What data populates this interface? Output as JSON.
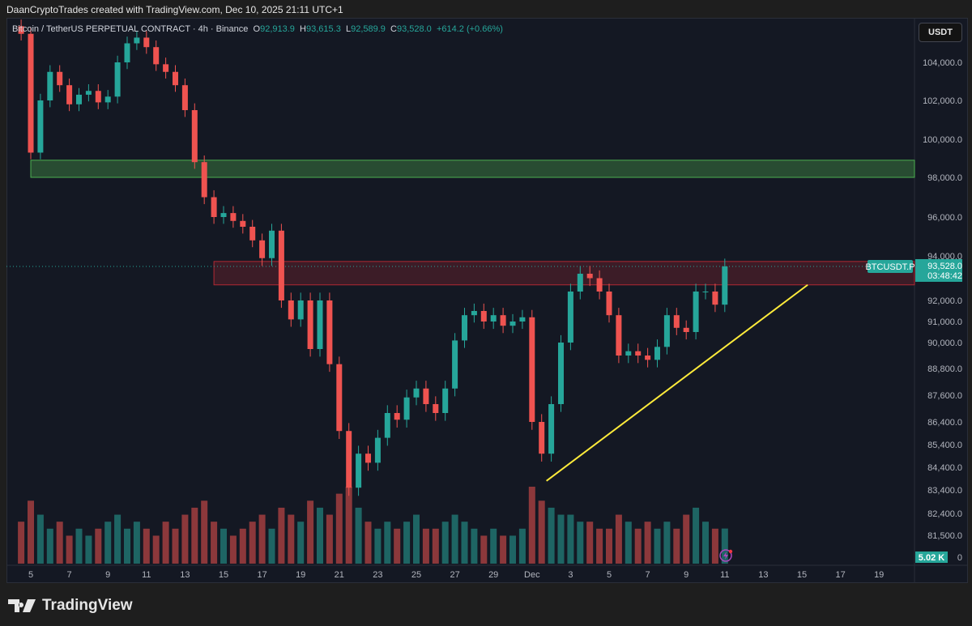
{
  "credit": "DaanCryptoTrades created with TradingView.com, Dec 10, 2025 21:11 UTC+1",
  "legend": {
    "symbol": "Bitcoin / TetherUS PERPETUAL CONTRACT · 4h · Binance",
    "o_label": "O",
    "o": "92,913.9",
    "h_label": "H",
    "h": "93,615.3",
    "l_label": "L",
    "l": "92,589.9",
    "c_label": "C",
    "c": "93,528.0",
    "change": "+614.2 (+0.66%)"
  },
  "currency_button": "USDT",
  "price_badge": {
    "symbol": "BTCUSDT.P",
    "price": "93,528.0",
    "countdown": "03:48:42"
  },
  "volume_badge": "5.02 K",
  "brand": "TradingView",
  "colors": {
    "up": "#26a69a",
    "down": "#ef5350",
    "support_zone": "#4caf50",
    "resistance_zone": "#b22833",
    "trendline": "#ffeb3b",
    "background": "#141823"
  },
  "chart_data": {
    "type": "candlestick",
    "interval": "4h",
    "y_ticks": [
      "104,000.0",
      "102,000.0",
      "100,000.0",
      "98,000.0",
      "96,000.0",
      "94,000.0",
      "92,000.0",
      "91,000.0",
      "90,000.0",
      "88,800.0",
      "87,600.0",
      "86,400.0",
      "85,400.0",
      "84,400.0",
      "83,400.0",
      "82,400.0",
      "81,500.0",
      "0"
    ],
    "y_tick_values": [
      104000,
      102000,
      100000,
      98000,
      96000,
      94000,
      92000,
      91000,
      90000,
      88800,
      87600,
      86400,
      85400,
      84400,
      83400,
      82400,
      81500,
      81000
    ],
    "x_ticks": [
      "5",
      "7",
      "9",
      "11",
      "13",
      "15",
      "17",
      "19",
      "21",
      "23",
      "25",
      "27",
      "29",
      "Dec",
      "3",
      "5",
      "7",
      "9",
      "11",
      "13",
      "15",
      "17",
      "19"
    ],
    "x_tick_days": [
      5,
      7,
      9,
      11,
      13,
      15,
      17,
      19,
      21,
      23,
      25,
      27,
      29,
      31,
      33,
      35,
      37,
      39,
      41,
      43,
      45,
      47,
      49
    ],
    "start_day": 4.5,
    "step_days": 0.5,
    "closes": [
      105500,
      99300,
      102000,
      103500,
      102800,
      101800,
      102300,
      102500,
      101900,
      102200,
      104000,
      105000,
      105300,
      104800,
      103900,
      103500,
      102800,
      101500,
      98800,
      97000,
      96000,
      96200,
      95800,
      95500,
      94800,
      93900,
      95300,
      92000,
      91100,
      92000,
      89700,
      92000,
      89000,
      86000,
      83500,
      85000,
      84600,
      85700,
      86800,
      86500,
      87500,
      87900,
      87200,
      86800,
      87900,
      90100,
      91300,
      91500,
      91000,
      91300,
      90800,
      91000,
      91200,
      86400,
      85000,
      87200,
      90000,
      92400,
      93200,
      93000,
      92400,
      91300,
      89400,
      89600,
      89400,
      89200,
      89800,
      91300,
      90700,
      90500,
      92400,
      92400,
      91800,
      93528
    ],
    "volumes": [
      6,
      9,
      7,
      5,
      6,
      4,
      5,
      4,
      5,
      6,
      7,
      5,
      6,
      5,
      4,
      6,
      5,
      7,
      8,
      9,
      6,
      5,
      4,
      5,
      6,
      7,
      5,
      8,
      7,
      6,
      9,
      8,
      7,
      10,
      11,
      8,
      6,
      5,
      6,
      5,
      6,
      7,
      5,
      5,
      6,
      7,
      6,
      5,
      4,
      5,
      4,
      4,
      5,
      11,
      9,
      8,
      7,
      7,
      6,
      6,
      5,
      5,
      7,
      6,
      5,
      6,
      5,
      6,
      5,
      7,
      8,
      6,
      5,
      5.02
    ],
    "last_price": 93528,
    "zones": [
      {
        "name": "support",
        "from": 98000,
        "to": 98900,
        "start_day": 5
      },
      {
        "name": "resistance",
        "from": 92700,
        "to": 93750,
        "start_day": 14.5
      }
    ],
    "trendline": {
      "from": {
        "day": 31.75,
        "price": 83800
      },
      "to": {
        "day": 45.3,
        "price": 92700
      }
    }
  }
}
